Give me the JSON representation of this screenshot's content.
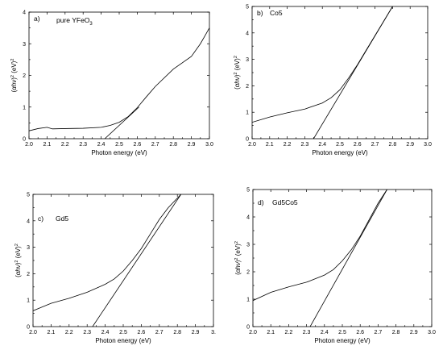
{
  "chart_data": [
    {
      "type": "line",
      "panel_label": "a)",
      "annotation": "pure YFeO3",
      "xlabel": "Photon energy (eV)",
      "ylabel": "(αhν)² (eV)²",
      "xlim": [
        2.0,
        3.0
      ],
      "ylim": [
        0,
        4
      ],
      "x_ticks": [
        "2.0",
        "2.1",
        "2.2",
        "2.3",
        "2.4",
        "2.5",
        "2.6",
        "2.7",
        "2.8",
        "2.9",
        "3.0"
      ],
      "y_ticks": [
        "0",
        "1",
        "2",
        "3",
        "4"
      ],
      "grid": false,
      "series": [
        {
          "x": [
            2.0,
            2.05,
            2.1,
            2.13,
            2.2,
            2.3,
            2.4,
            2.45,
            2.5,
            2.55,
            2.6,
            2.65,
            2.7,
            2.8,
            2.9,
            2.95,
            3.0
          ],
          "y": [
            0.25,
            0.32,
            0.36,
            0.31,
            0.32,
            0.33,
            0.36,
            0.42,
            0.52,
            0.7,
            0.98,
            1.32,
            1.65,
            2.2,
            2.6,
            3.0,
            3.5
          ]
        },
        {
          "x": [
            2.42,
            2.61
          ],
          "y": [
            0.0,
            1.0
          ]
        }
      ]
    },
    {
      "type": "line",
      "panel_label": "b)",
      "annotation": "Co5",
      "xlabel": "Photon energy (eV)",
      "ylabel": "(αhν)² (eV)²",
      "xlim": [
        2.0,
        3.0
      ],
      "ylim": [
        0,
        5
      ],
      "x_ticks": [
        "2.0",
        "2.1",
        "2.2",
        "2.3",
        "2.4",
        "2.5",
        "2.6",
        "2.7",
        "2.8",
        "2.9",
        "3.0"
      ],
      "y_ticks": [
        "0",
        "1",
        "2",
        "3",
        "4",
        "5"
      ],
      "grid": false,
      "series": [
        {
          "x": [
            2.0,
            2.1,
            2.2,
            2.3,
            2.4,
            2.45,
            2.5,
            2.55,
            2.6,
            2.65,
            2.7,
            2.75,
            2.8
          ],
          "y": [
            0.62,
            0.82,
            0.98,
            1.12,
            1.35,
            1.55,
            1.85,
            2.3,
            2.8,
            3.35,
            3.9,
            4.45,
            5.0
          ]
        },
        {
          "x": [
            2.35,
            2.8
          ],
          "y": [
            0.0,
            5.0
          ]
        }
      ]
    },
    {
      "type": "line",
      "panel_label": "c)",
      "annotation": "Gd5",
      "xlabel": "Photon energy (eV)",
      "ylabel": "(αhν)² (eV)²",
      "xlim": [
        2.0,
        3.0
      ],
      "ylim": [
        0,
        5
      ],
      "x_ticks": [
        "2.0",
        "2.1",
        "2.2",
        "2.3",
        "2.4",
        "2.5",
        "2.6",
        "2.7",
        "2.8",
        "2.9",
        "3."
      ],
      "y_ticks": [
        "0",
        "1",
        "2",
        "3",
        "4",
        "5"
      ],
      "grid": false,
      "series": [
        {
          "x": [
            2.0,
            2.1,
            2.2,
            2.3,
            2.4,
            2.45,
            2.5,
            2.55,
            2.6,
            2.65,
            2.7,
            2.75,
            2.82
          ],
          "y": [
            0.6,
            0.88,
            1.07,
            1.3,
            1.6,
            1.8,
            2.1,
            2.5,
            2.95,
            3.5,
            4.05,
            4.5,
            5.0
          ]
        },
        {
          "x": [
            2.33,
            2.82
          ],
          "y": [
            0.0,
            5.0
          ]
        }
      ]
    },
    {
      "type": "line",
      "panel_label": "d)",
      "annotation": "Gd5Co5",
      "xlabel": "Photon energy (eV)",
      "ylabel": "(αhν)² (eV)²",
      "xlim": [
        2.0,
        3.0
      ],
      "ylim": [
        0,
        5
      ],
      "x_ticks": [
        "2.0",
        "2.1",
        "2.2",
        "2.3",
        "2.4",
        "2.5",
        "2.6",
        "2.7",
        "2.8",
        "2.9",
        "3.0"
      ],
      "y_ticks": [
        "0",
        "1",
        "2",
        "3",
        "4",
        "5"
      ],
      "grid": false,
      "series": [
        {
          "x": [
            2.0,
            2.1,
            2.2,
            2.3,
            2.4,
            2.45,
            2.5,
            2.55,
            2.6,
            2.65,
            2.7,
            2.75
          ],
          "y": [
            0.95,
            1.25,
            1.45,
            1.62,
            1.88,
            2.08,
            2.4,
            2.8,
            3.3,
            3.9,
            4.5,
            5.0
          ]
        },
        {
          "x": [
            2.32,
            2.75
          ],
          "y": [
            0.0,
            5.0
          ]
        }
      ]
    }
  ]
}
